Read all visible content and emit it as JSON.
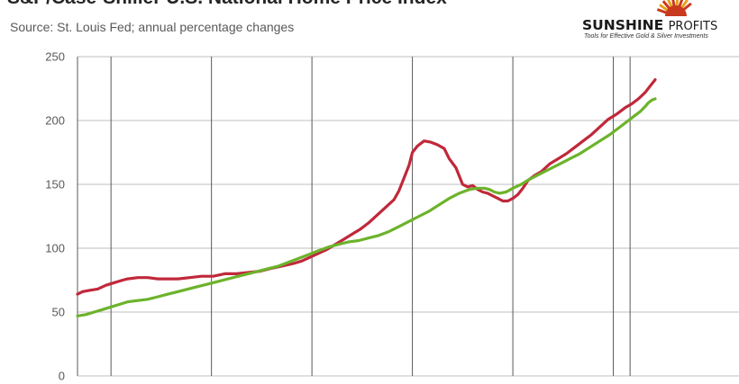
{
  "header": {
    "title": "S&P/Case-Shiller U.S. National Home Price Index",
    "subtitle": "Source: St. Louis Fed; annual percentage changes"
  },
  "logo": {
    "name_bold": "SUNSHINE",
    "name_rest": "PROFITS",
    "tagline": "Tools for Effective Gold & Silver Investments",
    "colors": {
      "ray_dark": "#c8391e",
      "ray_light": "#e6a11e"
    }
  },
  "chart_data": {
    "type": "line",
    "title": "S&P/Case-Shiller U.S. National Home Price Index",
    "subtitle": "Source: St. Louis Fed; annual percentage changes",
    "xlabel": "",
    "ylabel": "",
    "ylim": [
      0,
      250
    ],
    "yticks": [
      0,
      50,
      100,
      150,
      200,
      250
    ],
    "x_range": [
      1987,
      2021.5
    ],
    "vertical_grid_x": [
      1987,
      1989,
      1995,
      2001,
      2007,
      2013,
      2019,
      2020
    ],
    "grid": true,
    "legend": "none",
    "series": [
      {
        "color": "#c0283a",
        "points": [
          [
            1987.0,
            64
          ],
          [
            1987.3,
            66
          ],
          [
            1987.7,
            67
          ],
          [
            1988.2,
            68
          ],
          [
            1988.7,
            71
          ],
          [
            1989.2,
            73
          ],
          [
            1989.7,
            75
          ],
          [
            1990.0,
            76
          ],
          [
            1990.6,
            77
          ],
          [
            1991.2,
            77
          ],
          [
            1991.8,
            76
          ],
          [
            1992.4,
            76
          ],
          [
            1993.0,
            76
          ],
          [
            1993.7,
            77
          ],
          [
            1994.4,
            78
          ],
          [
            1995.1,
            78
          ],
          [
            1995.8,
            80
          ],
          [
            1996.5,
            80
          ],
          [
            1997.2,
            81
          ],
          [
            1997.9,
            82
          ],
          [
            1998.5,
            84
          ],
          [
            1999.2,
            86
          ],
          [
            1999.9,
            88
          ],
          [
            2000.4,
            90
          ],
          [
            2000.9,
            93
          ],
          [
            2001.4,
            96
          ],
          [
            2001.9,
            99
          ],
          [
            2002.4,
            103
          ],
          [
            2002.9,
            107
          ],
          [
            2003.4,
            111
          ],
          [
            2003.9,
            115
          ],
          [
            2004.4,
            120
          ],
          [
            2004.9,
            126
          ],
          [
            2005.4,
            132
          ],
          [
            2005.9,
            138
          ],
          [
            2006.2,
            145
          ],
          [
            2006.5,
            155
          ],
          [
            2006.8,
            165
          ],
          [
            2007.0,
            175
          ],
          [
            2007.3,
            180
          ],
          [
            2007.7,
            184
          ],
          [
            2008.1,
            183
          ],
          [
            2008.5,
            181
          ],
          [
            2008.9,
            178
          ],
          [
            2009.2,
            170
          ],
          [
            2009.6,
            163
          ],
          [
            2010.0,
            150
          ],
          [
            2010.3,
            148
          ],
          [
            2010.6,
            149
          ],
          [
            2010.9,
            146
          ],
          [
            2011.2,
            144
          ],
          [
            2011.5,
            143
          ],
          [
            2011.8,
            141
          ],
          [
            2012.1,
            139
          ],
          [
            2012.4,
            137
          ],
          [
            2012.7,
            137
          ],
          [
            2013.0,
            139
          ],
          [
            2013.3,
            142
          ],
          [
            2013.6,
            147
          ],
          [
            2013.9,
            153
          ],
          [
            2014.3,
            157
          ],
          [
            2014.7,
            160
          ],
          [
            2015.2,
            166
          ],
          [
            2015.7,
            170
          ],
          [
            2016.2,
            174
          ],
          [
            2016.7,
            179
          ],
          [
            2017.2,
            184
          ],
          [
            2017.7,
            189
          ],
          [
            2018.2,
            195
          ],
          [
            2018.7,
            201
          ],
          [
            2019.2,
            205
          ],
          [
            2019.7,
            210
          ],
          [
            2020.1,
            213
          ],
          [
            2020.5,
            217
          ],
          [
            2020.9,
            222
          ],
          [
            2021.2,
            227
          ],
          [
            2021.5,
            232
          ]
        ]
      },
      {
        "color": "#6cb32b",
        "points": [
          [
            1987.0,
            47
          ],
          [
            1987.5,
            48
          ],
          [
            1988.0,
            50
          ],
          [
            1988.5,
            52
          ],
          [
            1989.0,
            54
          ],
          [
            1989.5,
            56
          ],
          [
            1990.0,
            58
          ],
          [
            1990.6,
            59
          ],
          [
            1991.2,
            60
          ],
          [
            1991.8,
            62
          ],
          [
            1992.4,
            64
          ],
          [
            1993.0,
            66
          ],
          [
            1993.6,
            68
          ],
          [
            1994.2,
            70
          ],
          [
            1994.8,
            72
          ],
          [
            1995.4,
            74
          ],
          [
            1996.0,
            76
          ],
          [
            1996.6,
            78
          ],
          [
            1997.2,
            80
          ],
          [
            1997.8,
            82
          ],
          [
            1998.4,
            84
          ],
          [
            1999.0,
            86
          ],
          [
            1999.6,
            89
          ],
          [
            2000.2,
            92
          ],
          [
            2000.8,
            95
          ],
          [
            2001.4,
            98
          ],
          [
            2002.0,
            101
          ],
          [
            2002.6,
            103
          ],
          [
            2003.2,
            105
          ],
          [
            2003.8,
            106
          ],
          [
            2004.4,
            108
          ],
          [
            2005.0,
            110
          ],
          [
            2005.6,
            113
          ],
          [
            2006.2,
            117
          ],
          [
            2006.8,
            121
          ],
          [
            2007.4,
            125
          ],
          [
            2008.0,
            129
          ],
          [
            2008.6,
            134
          ],
          [
            2009.2,
            139
          ],
          [
            2009.8,
            143
          ],
          [
            2010.4,
            146
          ],
          [
            2010.9,
            147
          ],
          [
            2011.3,
            147
          ],
          [
            2011.6,
            146
          ],
          [
            2011.9,
            144
          ],
          [
            2012.2,
            143
          ],
          [
            2012.6,
            144
          ],
          [
            2013.0,
            147
          ],
          [
            2013.5,
            150
          ],
          [
            2014.0,
            154
          ],
          [
            2014.6,
            158
          ],
          [
            2015.2,
            162
          ],
          [
            2015.8,
            166
          ],
          [
            2016.4,
            170
          ],
          [
            2017.0,
            174
          ],
          [
            2017.6,
            179
          ],
          [
            2018.2,
            184
          ],
          [
            2018.8,
            189
          ],
          [
            2019.4,
            195
          ],
          [
            2019.9,
            200
          ],
          [
            2020.3,
            204
          ],
          [
            2020.6,
            207
          ],
          [
            2020.9,
            211
          ],
          [
            2021.1,
            214
          ],
          [
            2021.3,
            216
          ],
          [
            2021.5,
            217
          ]
        ]
      }
    ]
  }
}
